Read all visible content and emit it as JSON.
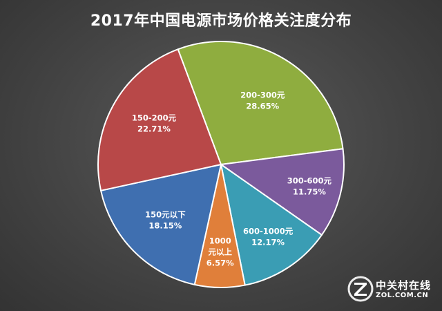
{
  "chart_data": {
    "type": "pie",
    "title": "2017年中国电源市场价格关注度分布",
    "slices": [
      {
        "label": "200-300元",
        "value": 28.65,
        "display": "28.65%",
        "color": "#8fad3f"
      },
      {
        "label": "300-600元",
        "value": 11.75,
        "display": "11.75%",
        "color": "#7b5a9c"
      },
      {
        "label": "600-1000元",
        "value": 12.17,
        "display": "12.17%",
        "color": "#3a9db4"
      },
      {
        "label": "1000元以上",
        "value": 6.57,
        "display": "6.57%",
        "color": "#e07f3a"
      },
      {
        "label": "150元以下",
        "value": 18.15,
        "display": "18.15%",
        "color": "#3f6fb0"
      },
      {
        "label": "150-200元",
        "value": 22.71,
        "display": "22.71%",
        "color": "#b84848"
      }
    ]
  },
  "watermark": {
    "brand": "中关村在线",
    "domain": "ZOL.COM.CN"
  }
}
